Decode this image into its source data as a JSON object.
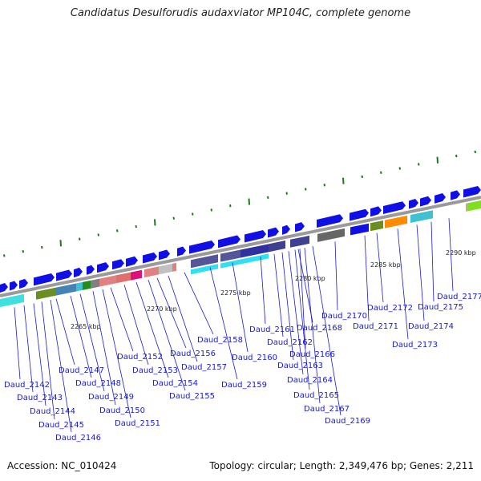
{
  "title": "Candidatus Desulforudis audaxviator MP104C, complete genome",
  "footer": {
    "accession": "Accession: NC_010424",
    "info": "Topology: circular; Length: 2,349,476 bp; Genes: 2,211"
  },
  "colors": {
    "backbone": "#9a9a9a",
    "cds": "#1010e6",
    "gene_label": "#1a1ad6",
    "tick": "#1a7a1a"
  },
  "kbp_labels": [
    "2265 kbp",
    "2270 kbp",
    "2275 kbp",
    "2280 kbp",
    "2285 kbp",
    "2290 kbp"
  ],
  "genes": [
    "Daud_2142",
    "Daud_2143",
    "Daud_2144",
    "Daud_2145",
    "Daud_2146",
    "Daud_2147",
    "Daud_2148",
    "Daud_2149",
    "Daud_2150",
    "Daud_2151",
    "Daud_2152",
    "Daud_2153",
    "Daud_2154",
    "Daud_2155",
    "Daud_2156",
    "Daud_2157",
    "Daud_2158",
    "Daud_2159",
    "Daud_2160",
    "Daud_2161",
    "Daud_2162",
    "Daud_2163",
    "Daud_2164",
    "Daud_2165",
    "Daud_2166",
    "Daud_2167",
    "Daud_2168",
    "Daud_2169",
    "Daud_2170",
    "Daud_2171",
    "Daud_2172",
    "Daud_2173",
    "Daud_2174",
    "Daud_2175",
    "Daud_2177"
  ]
}
